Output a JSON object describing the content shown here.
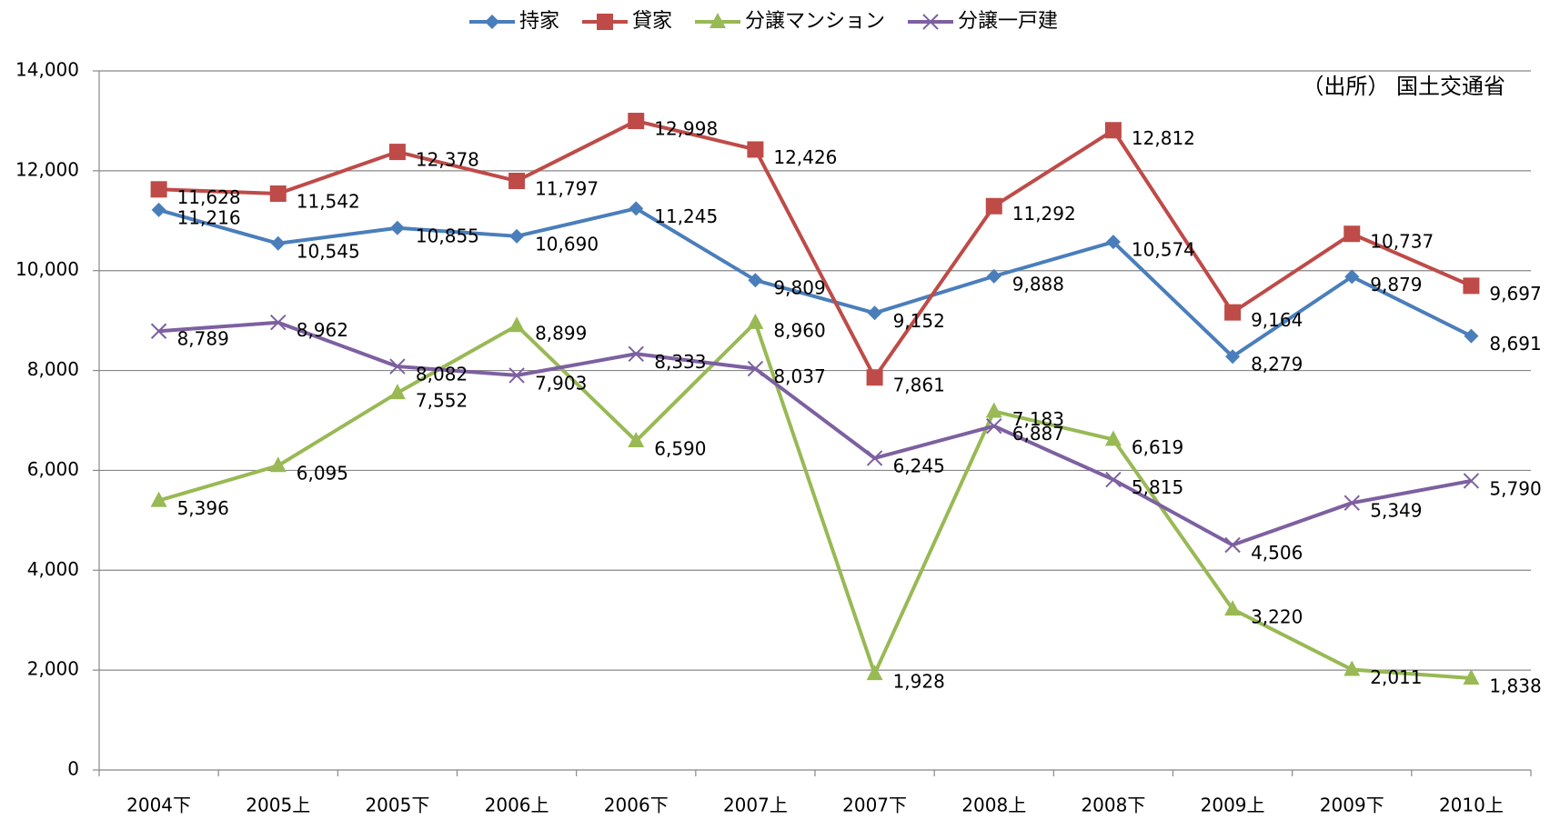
{
  "chart_data": {
    "type": "line",
    "annotation": "（出所） 国土交通省",
    "categories": [
      "2004下",
      "2005上",
      "2005下",
      "2006上",
      "2006下",
      "2007上",
      "2007下",
      "2008上",
      "2008下",
      "2009上",
      "2009下",
      "2010上"
    ],
    "ylim": [
      0,
      14000
    ],
    "yticks": [
      0,
      {
        "value": 2000,
        "label": "2,000"
      },
      {
        "value": 4000,
        "label": "4,000"
      },
      {
        "value": 6000,
        "label": "6,000"
      },
      {
        "value": 8000,
        "label": "8,000"
      },
      {
        "value": 10000,
        "label": "10,000"
      },
      {
        "value": 12000,
        "label": "12,000"
      },
      {
        "value": 14000,
        "label": "14,000"
      }
    ],
    "grid": true,
    "legend": "top",
    "series": [
      {
        "name": "持家",
        "color": "#4a7ebb",
        "marker": "diamond",
        "values": [
          11216,
          10545,
          10855,
          10690,
          11245,
          9809,
          9152,
          9888,
          10574,
          8279,
          9879,
          8691
        ],
        "value_labels": [
          "11,216",
          "10,545",
          "10,855",
          "10,690",
          "11,245",
          "9,809",
          "9,152",
          "9,888",
          "10,574",
          "8,279",
          "9,879",
          "8,691"
        ]
      },
      {
        "name": "貸家",
        "color": "#be4b48",
        "marker": "square",
        "values": [
          11628,
          11542,
          12378,
          11797,
          12998,
          12426,
          7861,
          11292,
          12812,
          9164,
          10737,
          9697
        ],
        "value_labels": [
          "11,628",
          "11,542",
          "12,378",
          "11,797",
          "12,998",
          "12,426",
          "7,861",
          "11,292",
          "12,812",
          "9,164",
          "10,737",
          "9,697"
        ]
      },
      {
        "name": "分譲マンション",
        "color": "#98b954",
        "marker": "triangle",
        "values": [
          5396,
          6095,
          7552,
          8899,
          6590,
          8960,
          1928,
          7183,
          6619,
          3220,
          2011,
          1838
        ],
        "value_labels": [
          "5,396",
          "6,095",
          "7,552",
          "8,899",
          "6,590",
          "8,960",
          "1,928",
          "7,183",
          "6,619",
          "3,220",
          "2,011",
          "1,838"
        ]
      },
      {
        "name": "分譲一戸建",
        "color": "#7d60a0",
        "marker": "x",
        "values": [
          8789,
          8962,
          8082,
          7903,
          8333,
          8037,
          6245,
          6887,
          5815,
          4506,
          5349,
          5790
        ],
        "value_labels": [
          "8,789",
          "8,962",
          "8,082",
          "7,903",
          "8,333",
          "8,037",
          "6,245",
          "6,887",
          "5,815",
          "4,506",
          "5,349",
          "5,790"
        ]
      }
    ]
  }
}
